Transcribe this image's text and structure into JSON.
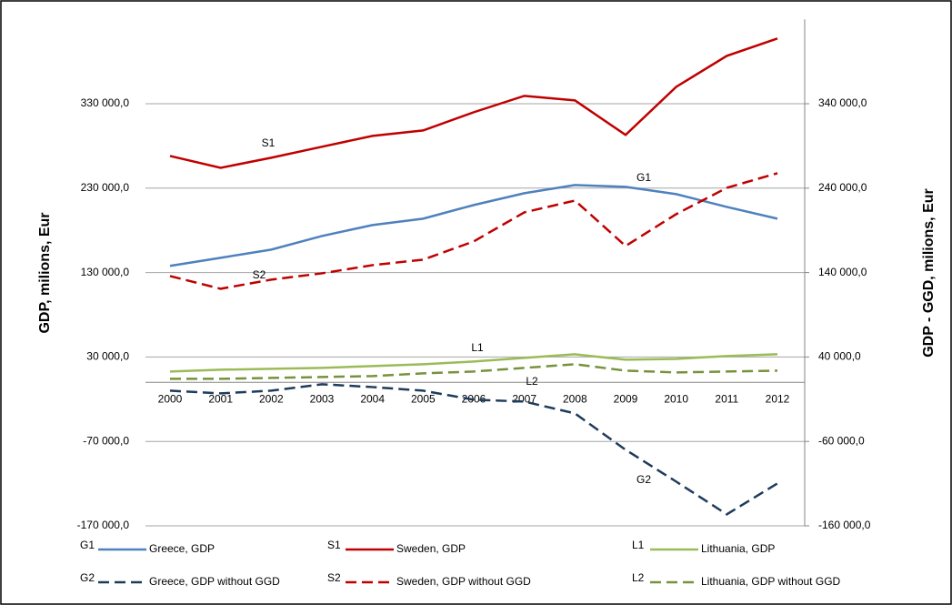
{
  "chart_data": {
    "type": "line",
    "y_label": "GDP, milions, Eur",
    "y2_label": "GDP - GGD, milions, Eur",
    "categories": [
      "2000",
      "2001",
      "2002",
      "2003",
      "2004",
      "2005",
      "2006",
      "2007",
      "2008",
      "2009",
      "2010",
      "2011",
      "2012"
    ],
    "ylim": [
      -170000,
      430000
    ],
    "yticks": [
      {
        "value": -170000,
        "label": "-170 000,0"
      },
      {
        "value": -70000,
        "label": "-70 000,0"
      },
      {
        "value": 30000,
        "label": "30 000,0"
      },
      {
        "value": 130000,
        "label": "130 000,0"
      },
      {
        "value": 230000,
        "label": "230 000,0"
      },
      {
        "value": 330000,
        "label": "330 000,0"
      }
    ],
    "y2lim": [
      -160000,
      440000
    ],
    "y2ticks": [
      {
        "value": -160000,
        "label": "-160 000,0"
      },
      {
        "value": -60000,
        "label": "-60 000,0"
      },
      {
        "value": 40000,
        "label": "40 000,0"
      },
      {
        "value": 140000,
        "label": "140 000,0"
      },
      {
        "value": 240000,
        "label": "240 000,0"
      },
      {
        "value": 340000,
        "label": "340 000,0"
      }
    ],
    "grid": true,
    "series": [
      {
        "code": "G1",
        "name": "Greece, GDP",
        "color": "#4f81bd",
        "dash": false,
        "values": [
          137900,
          147500,
          157200,
          173300,
          186300,
          193800,
          210000,
          224000,
          233700,
          231500,
          222900,
          207800,
          193800
        ]
      },
      {
        "code": "S1",
        "name": "Sweden, GDP",
        "color": "#c00000",
        "dash": false,
        "values": [
          268100,
          254100,
          266000,
          279000,
          291900,
          298300,
          319900,
          339300,
          333900,
          293000,
          350000,
          386700,
          407200
        ]
      },
      {
        "code": "L1",
        "name": "Lithuania, GDP",
        "color": "#9bbb59",
        "dash": false,
        "values": [
          12800,
          14900,
          16000,
          17100,
          19200,
          21400,
          24600,
          28900,
          33200,
          26800,
          27800,
          31100,
          33200
        ]
      },
      {
        "code": "G2",
        "name": "Greece, GDP without GGD",
        "color": "#1f3b5c",
        "dash": true,
        "axis": "y2",
        "values": [
          100,
          -3100,
          100,
          7700,
          4400,
          100,
          -10600,
          -12800,
          -26800,
          -69900,
          -107600,
          -146400,
          -109800
        ]
      },
      {
        "code": "S2",
        "name": "Sweden, GDP without GGD",
        "color": "#c00000",
        "dash": true,
        "axis": "y2",
        "values": [
          135900,
          120800,
          131600,
          139100,
          148800,
          155300,
          176900,
          211300,
          225300,
          171500,
          209200,
          240400,
          257700
        ]
      },
      {
        "code": "L2",
        "name": "Lithuania, GDP without GGD",
        "color": "#76923c",
        "dash": true,
        "axis": "y2",
        "values": [
          14100,
          14100,
          15200,
          16300,
          17400,
          20600,
          22800,
          27100,
          31400,
          23800,
          21700,
          22800,
          23800
        ]
      }
    ]
  }
}
